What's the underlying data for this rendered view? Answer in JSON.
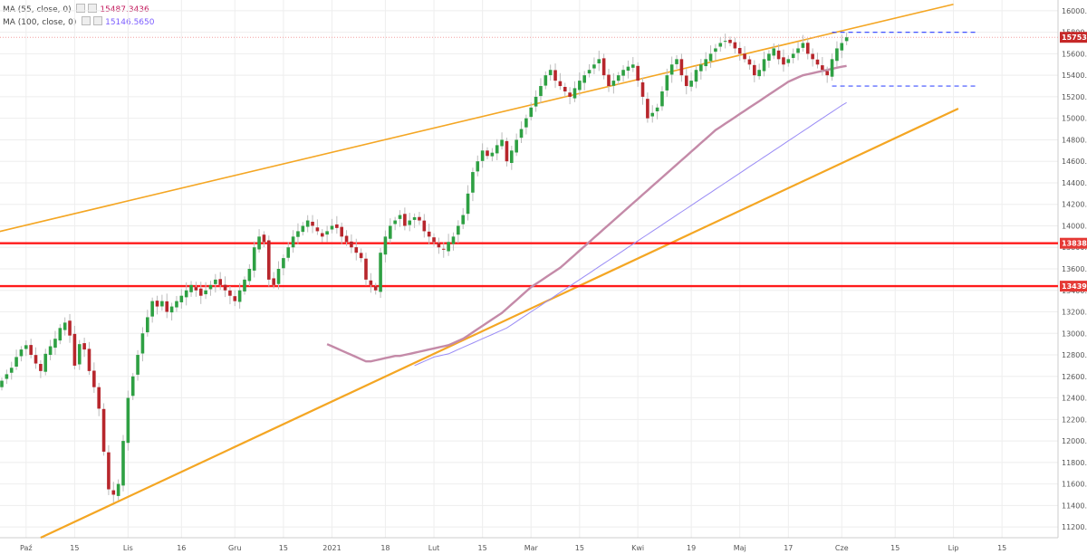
{
  "legend": [
    {
      "label": "MA (55, close, 0)",
      "value": "15487.3436",
      "color": "#c2185b"
    },
    {
      "label": "MA (100, close, 0)",
      "value": "15146.5650",
      "color": "#7b5cff"
    }
  ],
  "chart_data": {
    "type": "candlestick",
    "ylim": [
      11100,
      16100
    ],
    "y_ticks": [
      11200,
      11400,
      11600,
      11800,
      12000,
      12200,
      12400,
      12600,
      12800,
      13000,
      13200,
      13400,
      13600,
      13800,
      14000,
      14200,
      14400,
      14600,
      14800,
      15000,
      15200,
      15400,
      15600,
      15800,
      16000
    ],
    "x_ticks": [
      {
        "label": "Paź",
        "index": 5
      },
      {
        "label": "15",
        "index": 15
      },
      {
        "label": "Lis",
        "index": 26
      },
      {
        "label": "16",
        "index": 37
      },
      {
        "label": "Gru",
        "index": 48
      },
      {
        "label": "15",
        "index": 58
      },
      {
        "label": "2021",
        "index": 68
      },
      {
        "label": "18",
        "index": 79
      },
      {
        "label": "Lut",
        "index": 89
      },
      {
        "label": "15",
        "index": 99
      },
      {
        "label": "Mar",
        "index": 109
      },
      {
        "label": "15",
        "index": 119
      },
      {
        "label": "Kwi",
        "index": 131
      },
      {
        "label": "19",
        "index": 142
      },
      {
        "label": "Maj",
        "index": 152
      },
      {
        "label": "17",
        "index": 162
      },
      {
        "label": "Cze",
        "index": 173
      },
      {
        "label": "15",
        "index": 184
      },
      {
        "label": "Lip",
        "index": 196
      },
      {
        "label": "15",
        "index": 206
      }
    ],
    "closes": [
      12560,
      12620,
      12680,
      12780,
      12850,
      12890,
      12800,
      12720,
      12650,
      12810,
      12880,
      12950,
      13050,
      13100,
      12980,
      12700,
      12900,
      12850,
      12650,
      12500,
      12300,
      11900,
      11550,
      11500,
      11600,
      12000,
      12400,
      12600,
      12800,
      13000,
      13150,
      13300,
      13250,
      13300,
      13200,
      13250,
      13300,
      13350,
      13400,
      13450,
      13400,
      13350,
      13400,
      13450,
      13500,
      13450,
      13400,
      13350,
      13300,
      13400,
      13500,
      13600,
      13800,
      13900,
      13850,
      13500,
      13450,
      13600,
      13700,
      13800,
      13900,
      13950,
      14000,
      14050,
      14000,
      13950,
      13900,
      13950,
      14000,
      13980,
      13900,
      13850,
      13800,
      13750,
      13700,
      13500,
      13450,
      13400,
      13750,
      13900,
      14000,
      14050,
      14100,
      14000,
      14050,
      14080,
      14050,
      13950,
      13900,
      13850,
      13800,
      13780,
      13850,
      13900,
      14000,
      14100,
      14300,
      14500,
      14600,
      14700,
      14650,
      14680,
      14750,
      14800,
      14600,
      14700,
      14800,
      14900,
      15000,
      15100,
      15200,
      15300,
      15400,
      15450,
      15350,
      15300,
      15250,
      15200,
      15280,
      15350,
      15400,
      15450,
      15500,
      15550,
      15400,
      15300,
      15350,
      15400,
      15450,
      15480,
      15500,
      15350,
      15200,
      15000,
      15050,
      15100,
      15250,
      15400,
      15500,
      15550,
      15400,
      15300,
      15350,
      15450,
      15500,
      15550,
      15600,
      15650,
      15700,
      15720,
      15700,
      15650,
      15600,
      15550,
      15500,
      15400,
      15450,
      15550,
      15600,
      15650,
      15550,
      15500,
      15550,
      15600,
      15650,
      15700,
      15600,
      15550,
      15500,
      15450,
      15400,
      15550,
      15650,
      15700,
      15753.1
    ],
    "ma55": [
      12900,
      12880,
      12860,
      12840,
      12820,
      12800,
      12780,
      12760,
      12740,
      12740,
      12750,
      12760,
      12770,
      12780,
      12790,
      12790,
      12800,
      12810,
      12820,
      12830,
      12840,
      12850,
      12860,
      12870,
      12880,
      12890,
      12910,
      12930,
      12950,
      12980,
      13010,
      13040,
      13070,
      13100,
      13130,
      13160,
      13190,
      13230,
      13270,
      13310,
      13350,
      13390,
      13430,
      13460,
      13490,
      13520,
      13550,
      13580,
      13610,
      13650,
      13690,
      13730,
      13770,
      13810,
      13850,
      13890,
      13930,
      13970,
      14010,
      14050,
      14090,
      14130,
      14170,
      14210,
      14250,
      14290,
      14330,
      14370,
      14410,
      14450,
      14490,
      14530,
      14570,
      14610,
      14650,
      14690,
      14730,
      14770,
      14810,
      14850,
      14890,
      14920,
      14950,
      14980,
      15010,
      15040,
      15070,
      15100,
      15130,
      15160,
      15190,
      15220,
      15250,
      15280,
      15310,
      15340,
      15360,
      15380,
      15400,
      15410,
      15420,
      15430,
      15440,
      15450,
      15460,
      15470,
      15480,
      15487.3
    ],
    "ma100": [
      12700,
      12720,
      12740,
      12760,
      12780,
      12790,
      12800,
      12810,
      12830,
      12850,
      12870,
      12890,
      12910,
      12930,
      12950,
      12970,
      12990,
      13010,
      13030,
      13050,
      13080,
      13110,
      13140,
      13170,
      13200,
      13230,
      13260,
      13290,
      13320,
      13350,
      13380,
      13410,
      13440,
      13470,
      13500,
      13530,
      13560,
      13590,
      13620,
      13650,
      13680,
      13710,
      13740,
      13770,
      13800,
      13830,
      13860,
      13890,
      13920,
      13950,
      13980,
      14010,
      14040,
      14070,
      14100,
      14130,
      14160,
      14190,
      14220,
      14250,
      14280,
      14310,
      14340,
      14370,
      14400,
      14430,
      14460,
      14490,
      14520,
      14550,
      14580,
      14610,
      14640,
      14670,
      14700,
      14730,
      14760,
      14790,
      14820,
      14850,
      14880,
      14910,
      14940,
      14970,
      15000,
      15030,
      15060,
      15090,
      15120,
      15146.6
    ],
    "price_labels": [
      {
        "text": "15753.1",
        "value": 15753.1,
        "color": "#c62828"
      },
      {
        "text": "13838.1",
        "value": 13838.1,
        "color": "#e53935"
      },
      {
        "text": "13439.2",
        "value": 13439.2,
        "color": "#e53935"
      }
    ],
    "horizontal_lines": [
      {
        "value": 13838.1,
        "color": "#ff1a1a"
      },
      {
        "value": 13439.2,
        "color": "#ff1a1a"
      },
      {
        "value": 15753.1,
        "color": "#f2a0a0",
        "style": "dotted"
      }
    ],
    "channel_lines": [
      {
        "name": "upper-trendline",
        "from": [
          -3,
          13920
        ],
        "to": [
          196,
          16060
        ],
        "color": "#f4a623"
      },
      {
        "name": "lower-trendline",
        "from": [
          8,
          11100
        ],
        "to": [
          197,
          15090
        ],
        "color": "#f4a623"
      }
    ],
    "range_box": {
      "x_from": 171,
      "x_to": 201,
      "top": 15800,
      "bottom": 15300,
      "color": "#3f51ff"
    }
  }
}
